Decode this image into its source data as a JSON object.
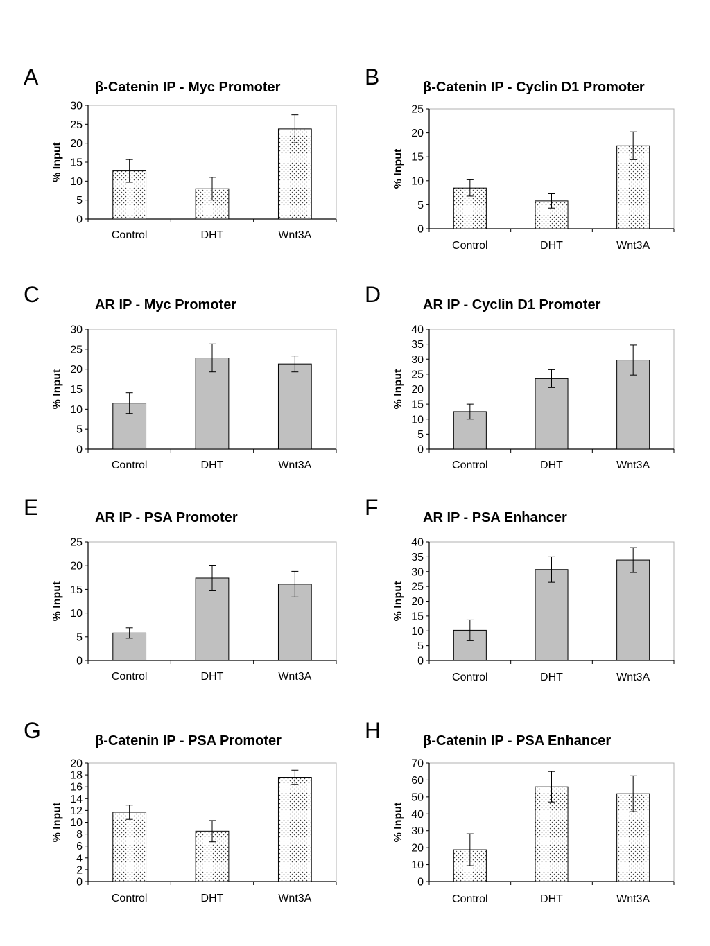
{
  "chart_data": [
    {
      "panel": "A",
      "type": "bar",
      "title": "β-Catenin IP - Myc Promoter",
      "categories": [
        "Control",
        "DHT",
        "Wnt3A"
      ],
      "values": [
        12.7,
        8.0,
        23.8
      ],
      "errors": [
        3.0,
        3.0,
        3.7
      ],
      "ylabel": "% Input",
      "ylim": [
        0,
        30
      ],
      "yticks": [
        0,
        5,
        10,
        15,
        20,
        25,
        30
      ],
      "fill": "dots",
      "grid": false
    },
    {
      "panel": "B",
      "type": "bar",
      "title": "β-Catenin IP - Cyclin D1 Promoter",
      "categories": [
        "Control",
        "DHT",
        "Wnt3A"
      ],
      "values": [
        8.5,
        5.8,
        17.3
      ],
      "errors": [
        1.7,
        1.5,
        2.9
      ],
      "ylabel": "% Input",
      "ylim": [
        0,
        25
      ],
      "yticks": [
        0,
        5,
        10,
        15,
        20,
        25
      ],
      "fill": "dots",
      "grid": false
    },
    {
      "panel": "C",
      "type": "bar",
      "title": "AR IP - Myc Promoter",
      "categories": [
        "Control",
        "DHT",
        "Wnt3A"
      ],
      "values": [
        11.5,
        22.8,
        21.3
      ],
      "errors": [
        2.6,
        3.5,
        2.0
      ],
      "ylabel": "% Input",
      "ylim": [
        0,
        30
      ],
      "yticks": [
        0,
        5,
        10,
        15,
        20,
        25,
        30
      ],
      "fill": "gray",
      "grid": false
    },
    {
      "panel": "D",
      "type": "bar",
      "title": "AR IP - Cyclin D1 Promoter",
      "categories": [
        "Control",
        "DHT",
        "Wnt3A"
      ],
      "values": [
        12.5,
        23.5,
        29.7
      ],
      "errors": [
        2.5,
        3.0,
        5.0
      ],
      "ylabel": "% Input",
      "ylim": [
        0,
        40
      ],
      "yticks": [
        0,
        5,
        10,
        15,
        20,
        25,
        30,
        35,
        40
      ],
      "fill": "gray",
      "grid": false
    },
    {
      "panel": "E",
      "type": "bar",
      "title": "AR IP - PSA Promoter",
      "categories": [
        "Control",
        "DHT",
        "Wnt3A"
      ],
      "values": [
        5.8,
        17.4,
        16.1
      ],
      "errors": [
        1.1,
        2.7,
        2.7
      ],
      "ylabel": "% Input",
      "ylim": [
        0,
        25
      ],
      "yticks": [
        0,
        5,
        10,
        15,
        20,
        25
      ],
      "fill": "gray",
      "grid": false
    },
    {
      "panel": "F",
      "type": "bar",
      "title": "AR IP - PSA Enhancer",
      "categories": [
        "Control",
        "DHT",
        "Wnt3A"
      ],
      "values": [
        10.2,
        30.7,
        33.9
      ],
      "errors": [
        3.5,
        4.3,
        4.2
      ],
      "ylabel": "% Input",
      "ylim": [
        0,
        40
      ],
      "yticks": [
        0,
        5,
        10,
        15,
        20,
        25,
        30,
        35,
        40
      ],
      "fill": "gray",
      "grid": false
    },
    {
      "panel": "G",
      "type": "bar",
      "title": "β-Catenin IP - PSA Promoter",
      "categories": [
        "Control",
        "DHT",
        "Wnt3A"
      ],
      "values": [
        11.7,
        8.5,
        17.6
      ],
      "errors": [
        1.2,
        1.8,
        1.2
      ],
      "ylabel": "% Input",
      "ylim": [
        0,
        20
      ],
      "yticks": [
        0,
        2,
        4,
        6,
        8,
        10,
        12,
        14,
        16,
        18,
        20
      ],
      "fill": "dots",
      "grid": false
    },
    {
      "panel": "H",
      "type": "bar",
      "title": "β-Catenin IP - PSA Enhancer",
      "categories": [
        "Control",
        "DHT",
        "Wnt3A"
      ],
      "values": [
        18.8,
        56.0,
        51.9
      ],
      "errors": [
        9.4,
        9.0,
        10.6
      ],
      "ylabel": "% Input",
      "ylim": [
        0,
        70
      ],
      "yticks": [
        0,
        10,
        20,
        30,
        40,
        50,
        60,
        70
      ],
      "fill": "dots",
      "grid": false
    }
  ],
  "colors": {
    "bar_gray": "#c0c0c0",
    "bar_dots_bg": "#ffffff",
    "dot": "#444444",
    "axis": "#000000",
    "frame": "#b0b0b0"
  }
}
